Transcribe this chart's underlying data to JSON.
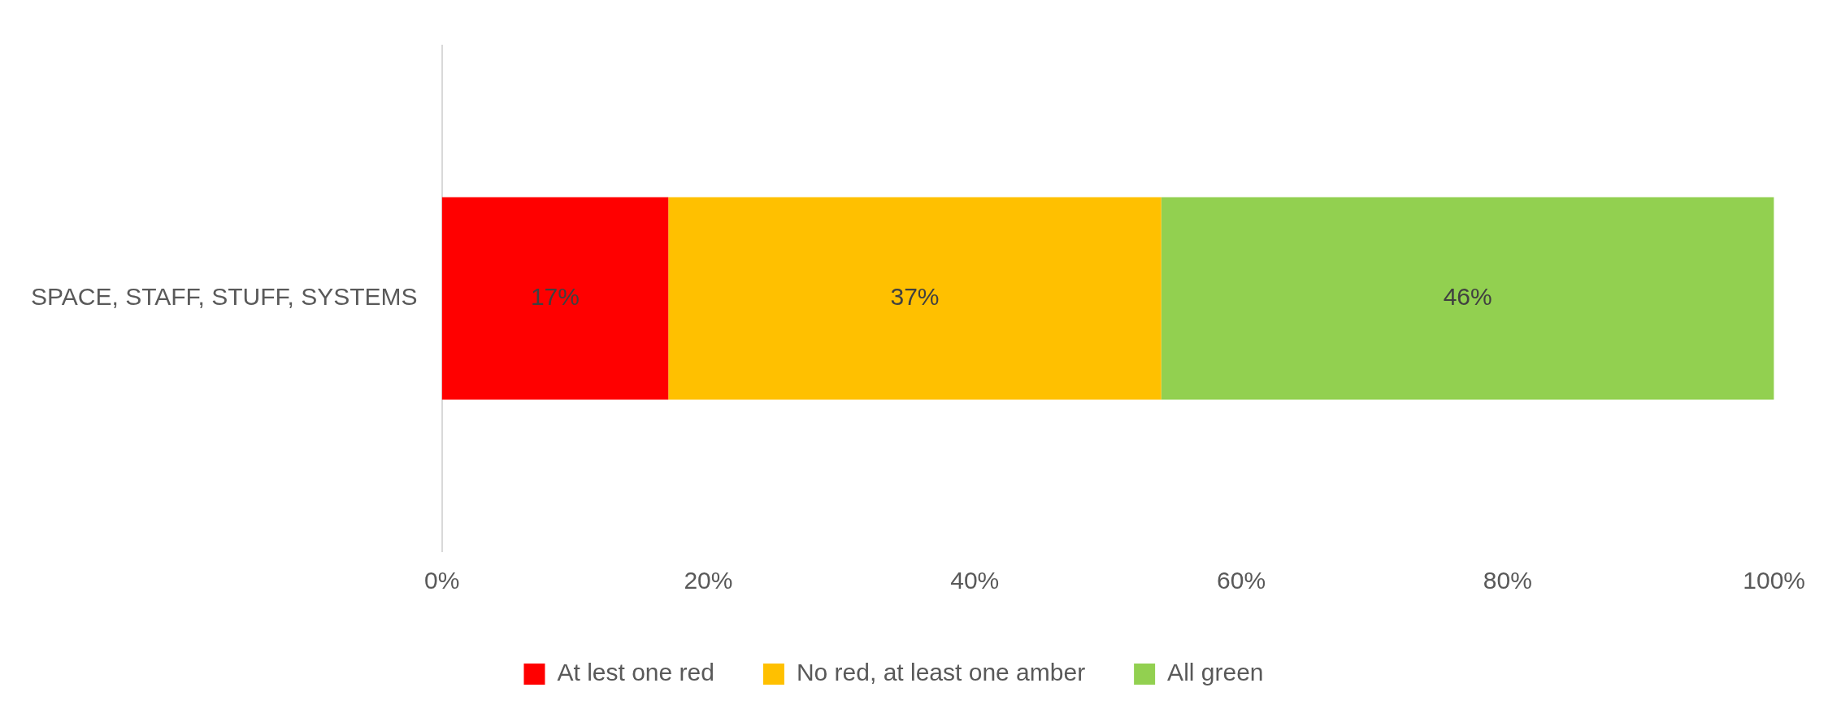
{
  "chart_data": {
    "type": "bar",
    "orientation": "horizontal",
    "stacked": true,
    "categories": [
      "SPACE, STAFF, STUFF, SYSTEMS"
    ],
    "series": [
      {
        "name": "At lest one red",
        "color": "#ff0000",
        "values": [
          17
        ],
        "value_labels": [
          "17%"
        ]
      },
      {
        "name": "No red, at least one amber",
        "color": "#ffc000",
        "values": [
          37
        ],
        "value_labels": [
          "37%"
        ]
      },
      {
        "name": "All green",
        "color": "#92d050",
        "values": [
          46
        ],
        "value_labels": [
          "46%"
        ]
      }
    ],
    "xlim": [
      0,
      100
    ],
    "xticks": [
      {
        "value": 0,
        "label": "0%"
      },
      {
        "value": 20,
        "label": "20%"
      },
      {
        "value": 40,
        "label": "40%"
      },
      {
        "value": 60,
        "label": "60%"
      },
      {
        "value": 80,
        "label": "80%"
      },
      {
        "value": 100,
        "label": "100%"
      }
    ],
    "legend": "bottom"
  }
}
